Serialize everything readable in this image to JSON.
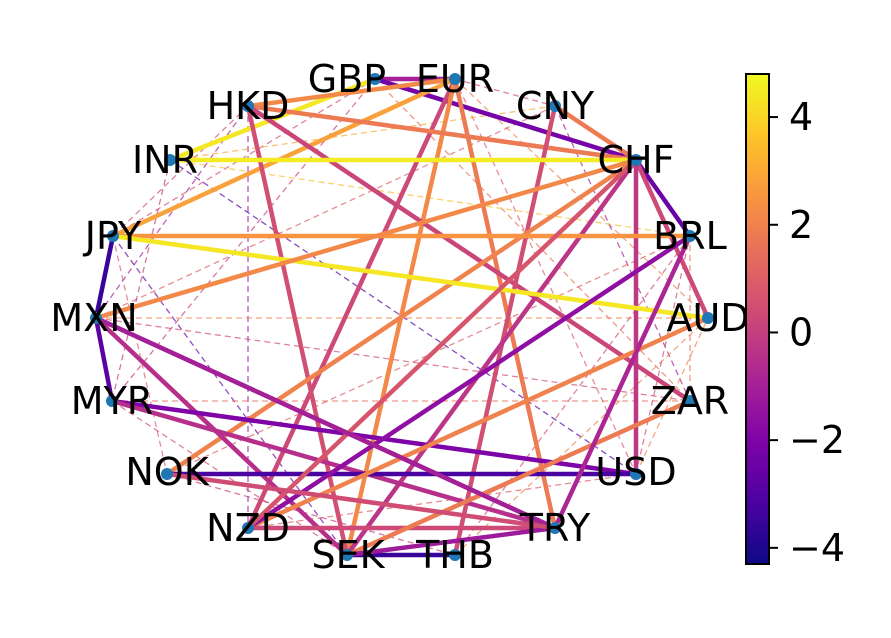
{
  "diagram": {
    "type": "network-graph",
    "layout": "circular",
    "edge_style": "colored by value; solid = strong link, dashed = weak link",
    "nodes": [
      "EUR",
      "GBP",
      "HKD",
      "INR",
      "JPY",
      "MXN",
      "MYR",
      "NOK",
      "NZD",
      "SEK",
      "THB",
      "TRY",
      "USD",
      "ZAR",
      "AUD",
      "BRL",
      "CHF",
      "CNY"
    ],
    "node_color": "#1f77b4",
    "strong_edges": [
      {
        "source": "GBP",
        "target": "EUR",
        "value": -1.0
      },
      {
        "source": "GBP",
        "target": "CHF",
        "value": -2.2
      },
      {
        "source": "GBP",
        "target": "INR",
        "value": 4.4
      },
      {
        "source": "EUR",
        "target": "HKD",
        "value": 2.2
      },
      {
        "source": "EUR",
        "target": "NZD",
        "value": 0.3
      },
      {
        "source": "EUR",
        "target": "SEK",
        "value": 2.2
      },
      {
        "source": "EUR",
        "target": "TRY",
        "value": 1.8
      },
      {
        "source": "EUR",
        "target": "JPY",
        "value": 2.8
      },
      {
        "source": "HKD",
        "target": "CHF",
        "value": 1.8
      },
      {
        "source": "HKD",
        "target": "ZAR",
        "value": 0.2
      },
      {
        "source": "HKD",
        "target": "SEK",
        "value": 0.5
      },
      {
        "source": "CNY",
        "target": "CHF",
        "value": 1.8
      },
      {
        "source": "CNY",
        "target": "THB",
        "value": 0.5
      },
      {
        "source": "CHF",
        "target": "BRL",
        "value": -2.5
      },
      {
        "source": "CHF",
        "target": "AUD",
        "value": 0.3
      },
      {
        "source": "CHF",
        "target": "USD",
        "value": -0.2
      },
      {
        "source": "CHF",
        "target": "NOK",
        "value": 2.0
      },
      {
        "source": "CHF",
        "target": "SEK",
        "value": -0.3
      },
      {
        "source": "INR",
        "target": "CHF",
        "value": 4.5
      },
      {
        "source": "JPY",
        "target": "BRL",
        "value": 2.5
      },
      {
        "source": "JPY",
        "target": "AUD",
        "value": 4.4
      },
      {
        "source": "JPY",
        "target": "MXN",
        "value": -3.5
      },
      {
        "source": "MXN",
        "target": "CHF",
        "value": 2.2
      },
      {
        "source": "MXN",
        "target": "MYR",
        "value": -2.8
      },
      {
        "source": "MXN",
        "target": "TRY",
        "value": -2.5
      },
      {
        "source": "MXN",
        "target": "SEK",
        "value": -0.5
      },
      {
        "source": "MYR",
        "target": "USD",
        "value": -2.0
      },
      {
        "source": "MYR",
        "target": "TRY",
        "value": -0.5
      },
      {
        "source": "NOK",
        "target": "USD",
        "value": -3.2
      },
      {
        "source": "NZD",
        "target": "AUD",
        "value": 2.0
      },
      {
        "source": "NZD",
        "target": "BRL",
        "value": -1.6
      },
      {
        "source": "NZD",
        "target": "CHF",
        "value": 0.7
      },
      {
        "source": "NZD",
        "target": "TRY",
        "value": 0.3
      },
      {
        "source": "SEK",
        "target": "THB",
        "value": -3.5
      },
      {
        "source": "SEK",
        "target": "ZAR",
        "value": 1.8
      },
      {
        "source": "SEK",
        "target": "TRY",
        "value": -1.2
      },
      {
        "source": "TRY",
        "target": "BRL",
        "value": -0.8
      },
      {
        "source": "TRY",
        "target": "MXN",
        "value": -1.0
      },
      {
        "source": "NOK",
        "target": "TRY",
        "value": 0.4
      }
    ],
    "weak_edges": [
      {
        "source": "GBP",
        "target": "ZAR",
        "value": 1.5
      },
      {
        "source": "GBP",
        "target": "JPY",
        "value": 0.5
      },
      {
        "source": "GBP",
        "target": "MYR",
        "value": 0.0
      },
      {
        "source": "EUR",
        "target": "AUD",
        "value": 2.0
      },
      {
        "source": "EUR",
        "target": "USD",
        "value": 1.0
      },
      {
        "source": "HKD",
        "target": "NZD",
        "value": -1.5
      },
      {
        "source": "HKD",
        "target": "JPY",
        "value": 0.5
      },
      {
        "source": "CNY",
        "target": "INR",
        "value": 3.0
      },
      {
        "source": "CNY",
        "target": "ZAR",
        "value": -1.0
      },
      {
        "source": "CNY",
        "target": "MXN",
        "value": 1.0
      },
      {
        "source": "INR",
        "target": "USD",
        "value": -3.0
      },
      {
        "source": "INR",
        "target": "MYR",
        "value": 0.0
      },
      {
        "source": "INR",
        "target": "BRL",
        "value": 3.5
      },
      {
        "source": "JPY",
        "target": "NOK",
        "value": 1.0
      },
      {
        "source": "JPY",
        "target": "SEK",
        "value": -2.5
      },
      {
        "source": "MXN",
        "target": "AUD",
        "value": 2.0
      },
      {
        "source": "MXN",
        "target": "ZAR",
        "value": 0.5
      },
      {
        "source": "MYR",
        "target": "ZAR",
        "value": 1.5
      },
      {
        "source": "MYR",
        "target": "SEK",
        "value": 0.5
      },
      {
        "source": "NOK",
        "target": "BRL",
        "value": 1.0
      },
      {
        "source": "NOK",
        "target": "THB",
        "value": 0.0
      },
      {
        "source": "NZD",
        "target": "USD",
        "value": 1.0
      },
      {
        "source": "THB",
        "target": "AUD",
        "value": 2.0
      },
      {
        "source": "THB",
        "target": "BRL",
        "value": 0.5
      },
      {
        "source": "USD",
        "target": "AUD",
        "value": 2.0
      },
      {
        "source": "USD",
        "target": "BRL",
        "value": 0.5
      },
      {
        "source": "ZAR",
        "target": "BRL",
        "value": 1.5
      },
      {
        "source": "AUD",
        "target": "CHF",
        "value": 0.5
      },
      {
        "source": "EUR",
        "target": "CNY",
        "value": 0.5
      },
      {
        "source": "HKD",
        "target": "MXN",
        "value": -1.0
      }
    ]
  },
  "colorbar": {
    "colormap": "plasma",
    "vmin": -4.3,
    "vmax": 4.8,
    "tick_values": [
      -4,
      -2,
      0,
      2,
      4
    ],
    "tick_labels": [
      "−4",
      "−2",
      "0",
      "2",
      "4"
    ]
  }
}
